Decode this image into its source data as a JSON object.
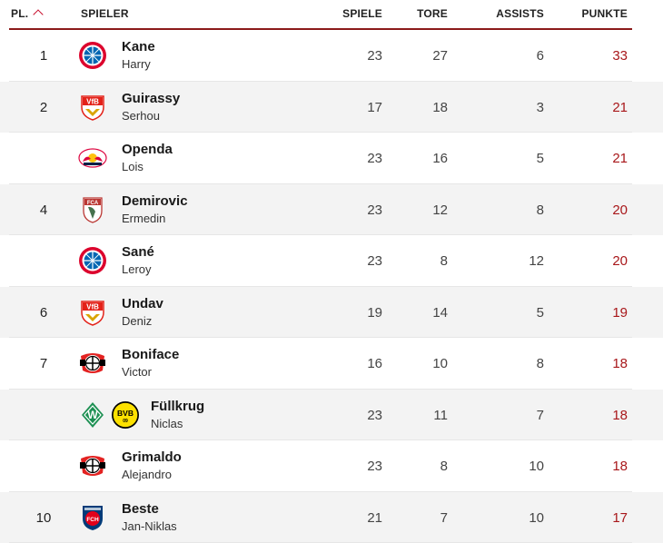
{
  "header": {
    "rank": "PL.",
    "player": "SPIELER",
    "games": "SPIELE",
    "goals": "TORE",
    "assists": "ASSISTS",
    "points": "PUNKTE"
  },
  "colors": {
    "accent": "#8b1a1a",
    "points": "#a8171a",
    "sort_icon": "#c8102e"
  },
  "rows": [
    {
      "rank": "1",
      "last": "Kane",
      "first": "Harry",
      "clubs": [
        "bayern-crest-icon"
      ],
      "games": "23",
      "goals": "27",
      "assists": "6",
      "points": "33"
    },
    {
      "rank": "2",
      "last": "Guirassy",
      "first": "Serhou",
      "clubs": [
        "vfb-stuttgart-crest-icon"
      ],
      "games": "17",
      "goals": "18",
      "assists": "3",
      "points": "21"
    },
    {
      "rank": "",
      "last": "Openda",
      "first": "Lois",
      "clubs": [
        "rb-leipzig-crest-icon"
      ],
      "games": "23",
      "goals": "16",
      "assists": "5",
      "points": "21"
    },
    {
      "rank": "4",
      "last": "Demirovic",
      "first": "Ermedin",
      "clubs": [
        "fc-augsburg-crest-icon"
      ],
      "games": "23",
      "goals": "12",
      "assists": "8",
      "points": "20"
    },
    {
      "rank": "",
      "last": "Sané",
      "first": "Leroy",
      "clubs": [
        "bayern-crest-icon"
      ],
      "games": "23",
      "goals": "8",
      "assists": "12",
      "points": "20"
    },
    {
      "rank": "6",
      "last": "Undav",
      "first": "Deniz",
      "clubs": [
        "vfb-stuttgart-crest-icon"
      ],
      "games": "19",
      "goals": "14",
      "assists": "5",
      "points": "19"
    },
    {
      "rank": "7",
      "last": "Boniface",
      "first": "Victor",
      "clubs": [
        "bayer-leverkusen-crest-icon"
      ],
      "games": "16",
      "goals": "10",
      "assists": "8",
      "points": "18"
    },
    {
      "rank": "",
      "last": "Füllkrug",
      "first": "Niclas",
      "clubs": [
        "werder-bremen-crest-icon",
        "dortmund-crest-icon"
      ],
      "games": "23",
      "goals": "11",
      "assists": "7",
      "points": "18"
    },
    {
      "rank": "",
      "last": "Grimaldo",
      "first": "Alejandro",
      "clubs": [
        "bayer-leverkusen-crest-icon"
      ],
      "games": "23",
      "goals": "8",
      "assists": "10",
      "points": "18"
    },
    {
      "rank": "10",
      "last": "Beste",
      "first": "Jan-Niklas",
      "clubs": [
        "heidenheim-crest-icon"
      ],
      "games": "21",
      "goals": "7",
      "assists": "10",
      "points": "17"
    }
  ]
}
